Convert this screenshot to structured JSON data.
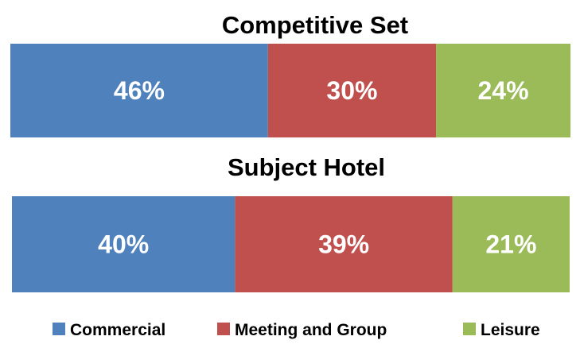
{
  "chart_data": {
    "type": "bar",
    "orientation": "horizontal-stacked-100",
    "charts": [
      {
        "title": "Competitive Set",
        "segments": [
          {
            "series": "Commercial",
            "value": 46,
            "label": "46%"
          },
          {
            "series": "Meeting and Group",
            "value": 30,
            "label": "30%"
          },
          {
            "series": "Leisure",
            "value": 24,
            "label": "24%"
          }
        ]
      },
      {
        "title": "Subject Hotel",
        "segments": [
          {
            "series": "Commercial",
            "value": 40,
            "label": "40%"
          },
          {
            "series": "Meeting and Group",
            "value": 39,
            "label": "39%"
          },
          {
            "series": "Leisure",
            "value": 21,
            "label": "21%"
          }
        ]
      }
    ],
    "legend": {
      "placement": "bottom",
      "entries": [
        {
          "name": "Commercial",
          "color": "#4f81bd"
        },
        {
          "name": "Meeting and Group",
          "color": "#c0504d"
        },
        {
          "name": "Leisure",
          "color": "#9bbb59"
        }
      ]
    },
    "grid": false
  }
}
